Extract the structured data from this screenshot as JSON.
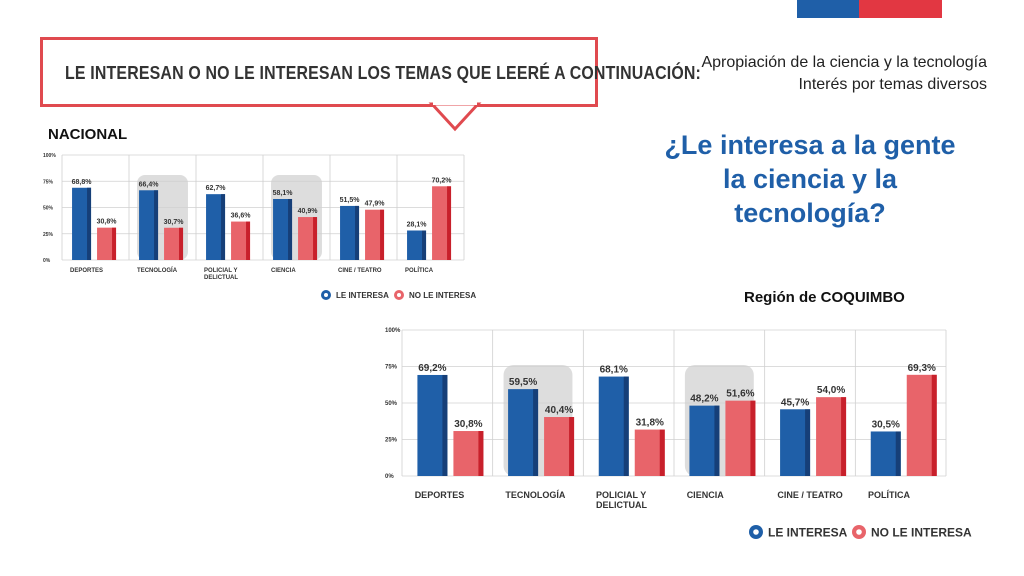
{
  "header": {
    "callout": "LE INTERESAN O NO LE INTERESAN LOS TEMAS QUE LEERÉ A CONTINUACIÓN:",
    "subtitle_line1": "Apropiación de la ciencia y la tecnología",
    "subtitle_line2": "Interés por temas diversos",
    "question_line1": "¿Le interesa a la gente",
    "question_line2": "la ciencia y la",
    "question_line3": "tecnología?",
    "label_nacional": "NACIONAL",
    "label_region": "Región de COQUIMBO"
  },
  "colors": {
    "interesa": "#1f5fa8",
    "interesa_dark": "#163f78",
    "no_interesa": "#e8646a",
    "no_interesa_dark": "#c8202b",
    "highlight": "#dddddd",
    "grid": "#d0d0d0",
    "flag_blue": "#1f5fa8",
    "flag_red": "#e23742",
    "title_blue": "#1f5fa8"
  },
  "chart_data": [
    {
      "type": "bar",
      "title": "NACIONAL",
      "categories": [
        "DEPORTES",
        "TECNOLOGÍA",
        "POLICIAL Y DELICTUAL",
        "CIENCIA",
        "CINE / TEATRO",
        "POLÍTICA"
      ],
      "series": [
        {
          "name": "LE INTERESA",
          "values": [
            68.8,
            66.4,
            62.7,
            58.1,
            51.5,
            28.1
          ],
          "labels": [
            "68,8%",
            "66,4%",
            "62,7%",
            "58,1%",
            "51,5%",
            "28,1%"
          ]
        },
        {
          "name": "NO LE INTERESA",
          "values": [
            30.8,
            30.7,
            36.6,
            40.9,
            47.9,
            70.2
          ],
          "labels": [
            "30,8%",
            "30,7%",
            "36,6%",
            "40,9%",
            "47,9%",
            "70,2%"
          ]
        }
      ],
      "highlighted_categories": [
        "TECNOLOGÍA",
        "CIENCIA"
      ],
      "ylim": [
        0,
        100
      ],
      "yticks": [
        "0%",
        "25%",
        "50%",
        "75%",
        "100%"
      ],
      "legend": "bottom-right",
      "grid": true
    },
    {
      "type": "bar",
      "title": "Región de COQUIMBO",
      "categories": [
        "DEPORTES",
        "TECNOLOGÍA",
        "POLICIAL Y DELICTUAL",
        "CIENCIA",
        "CINE / TEATRO",
        "POLÍTICA"
      ],
      "series": [
        {
          "name": "LE INTERESA",
          "values": [
            69.2,
            59.5,
            68.1,
            48.2,
            45.7,
            30.5
          ],
          "labels": [
            "69,2%",
            "59,5%",
            "68,1%",
            "48,2%",
            "45,7%",
            "30,5%"
          ]
        },
        {
          "name": "NO LE INTERESA",
          "values": [
            30.8,
            40.4,
            31.8,
            51.6,
            54.0,
            69.3
          ],
          "labels": [
            "30,8%",
            "40,4%",
            "31,8%",
            "51,6%",
            "54,0%",
            "69,3%"
          ]
        }
      ],
      "highlighted_categories": [
        "TECNOLOGÍA",
        "CIENCIA"
      ],
      "ylim": [
        0,
        100
      ],
      "yticks": [
        "0%",
        "25%",
        "50%",
        "75%",
        "100%"
      ],
      "legend": "bottom-right",
      "grid": true
    }
  ]
}
